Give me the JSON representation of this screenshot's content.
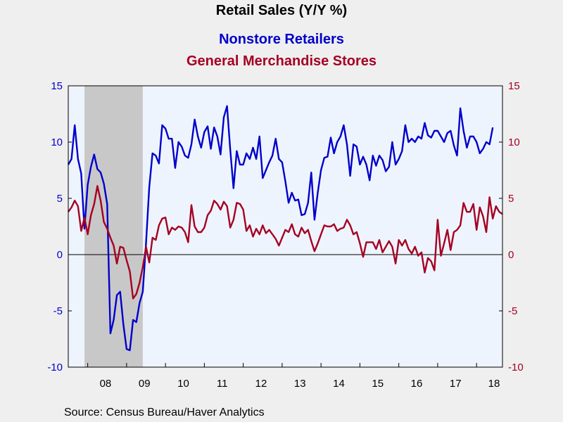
{
  "chart_data": {
    "type": "line",
    "title": "Retail Sales (Y/Y %)",
    "source": "Source:  Census Bureau/Haver Analytics",
    "x_tick_labels": [
      "08",
      "09",
      "10",
      "11",
      "12",
      "13",
      "14",
      "15",
      "16",
      "17",
      "18"
    ],
    "y_left_tick_labels": [
      "15",
      "10",
      "5",
      "0",
      "-5",
      "-10"
    ],
    "y_right_tick_labels": [
      "15",
      "10",
      "5",
      "0",
      "-5",
      "-10"
    ],
    "ylim": [
      -10,
      15
    ],
    "xlim": [
      "2007-07",
      "2018-09"
    ],
    "grid": false,
    "recession_shading": {
      "start": "2007-12",
      "end": "2009-06",
      "color": "#c8c8c8"
    },
    "plot_background": "#eef4fd",
    "zero_line": true,
    "series": [
      {
        "name": "Nonstore Retailers",
        "color": "#0000cc",
        "axis": "left",
        "x_start": "2007-07",
        "values": [
          8.0,
          8.5,
          11.5,
          8.5,
          7.2,
          2.3,
          6.2,
          7.8,
          8.9,
          7.6,
          7.3,
          6.3,
          4.5,
          -7.0,
          -5.8,
          -3.6,
          -3.3,
          -6.2,
          -8.4,
          -8.5,
          -5.8,
          -6.0,
          -4.3,
          -3.3,
          1.0,
          6.0,
          9.0,
          8.8,
          8.1,
          11.5,
          11.2,
          10.3,
          10.3,
          7.7,
          10.0,
          9.6,
          8.8,
          8.6,
          9.8,
          12.0,
          10.5,
          9.5,
          10.9,
          11.4,
          9.4,
          11.3,
          10.5,
          8.9,
          12.2,
          13.2,
          9.3,
          5.9,
          9.2,
          8.0,
          8.0,
          9.0,
          8.5,
          9.5,
          8.5,
          10.5,
          6.8,
          7.5,
          8.2,
          8.8,
          10.3,
          8.5,
          8.2,
          6.5,
          4.6,
          5.5,
          4.8,
          4.9,
          3.5,
          3.6,
          4.6,
          7.3,
          3.1,
          5.5,
          7.5,
          8.6,
          8.7,
          10.4,
          9.0,
          10.0,
          10.5,
          11.5,
          9.8,
          7.0,
          9.8,
          9.6,
          8.0,
          8.7,
          8.0,
          6.6,
          8.8,
          7.9,
          8.8,
          8.4,
          7.4,
          7.8,
          10.0,
          8.0,
          8.5,
          9.2,
          11.5,
          10.0,
          10.3,
          10.0,
          10.5,
          10.3,
          11.7,
          10.6,
          10.4,
          11.0,
          11.0,
          10.5,
          10.0,
          10.8,
          11.0,
          9.7,
          8.8,
          13.0,
          11.0,
          9.5,
          10.5,
          10.5,
          10.0,
          9.0,
          9.4,
          10.0,
          9.8,
          11.3
        ]
      },
      {
        "name": "General Merchandise Stores",
        "color": "#a50021",
        "axis": "right",
        "x_start": "2007-07",
        "values": [
          3.8,
          4.2,
          4.8,
          4.3,
          2.1,
          3.3,
          1.8,
          3.5,
          4.5,
          6.1,
          4.8,
          2.9,
          2.3,
          1.5,
          0.8,
          -0.8,
          0.7,
          0.6,
          -0.5,
          -1.5,
          -3.9,
          -3.5,
          -2.5,
          -1.1,
          0.7,
          -0.7,
          1.5,
          1.3,
          2.6,
          3.2,
          3.3,
          1.8,
          2.4,
          2.2,
          2.5,
          2.4,
          2.0,
          1.1,
          4.4,
          2.5,
          2.0,
          2.0,
          2.4,
          3.5,
          3.9,
          4.8,
          4.5,
          4.0,
          4.7,
          4.3,
          2.4,
          3.1,
          4.6,
          4.5,
          4.0,
          2.1,
          2.6,
          1.6,
          2.3,
          1.8,
          2.6,
          1.9,
          2.2,
          1.8,
          1.4,
          0.8,
          1.5,
          2.2,
          2.0,
          2.7,
          1.8,
          1.6,
          2.4,
          1.9,
          2.2,
          1.2,
          0.3,
          1.0,
          1.8,
          2.6,
          2.5,
          2.5,
          2.7,
          2.1,
          2.3,
          2.4,
          3.1,
          2.6,
          1.8,
          2.0,
          1.0,
          -0.2,
          1.1,
          1.1,
          1.1,
          0.5,
          1.3,
          0.2,
          0.7,
          1.2,
          0.7,
          -0.8,
          1.3,
          0.8,
          1.3,
          0.5,
          0.1,
          0.7,
          -0.1,
          0.2,
          -1.6,
          -0.3,
          -0.6,
          -1.4,
          3.1,
          -0.1,
          1.0,
          2.2,
          0.4,
          2.0,
          2.2,
          2.6,
          4.6,
          3.8,
          3.8,
          4.5,
          2.2,
          4.2,
          3.4,
          2.0,
          5.1,
          3.2,
          4.3,
          3.8,
          3.6
        ]
      }
    ]
  }
}
